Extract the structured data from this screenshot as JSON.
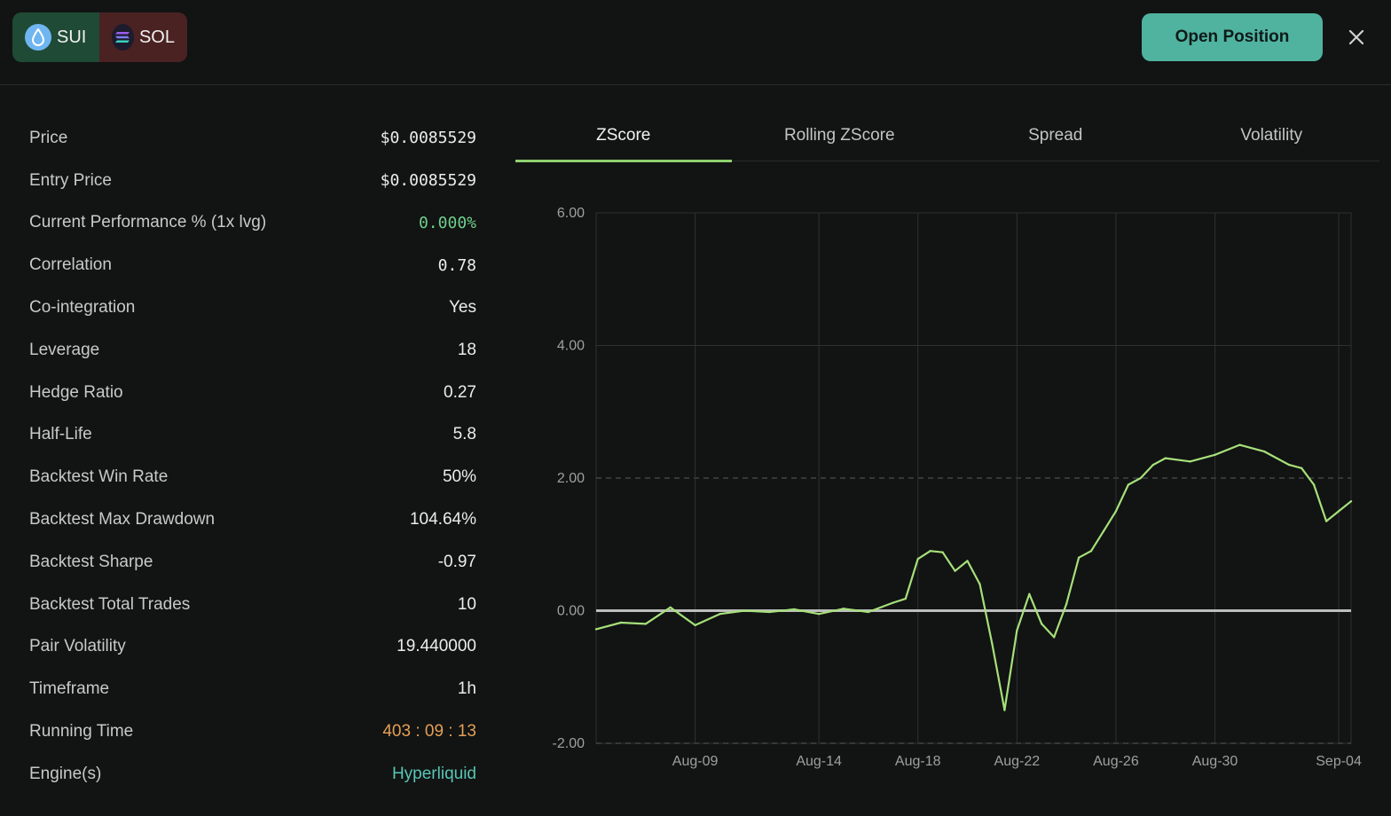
{
  "pair": {
    "token_a": "SUI",
    "token_b": "SOL",
    "token_a_icon": "sui-drop-icon",
    "token_b_icon": "solana-icon"
  },
  "header": {
    "open_position_label": "Open Position",
    "close_icon": "close-icon"
  },
  "stats": [
    {
      "label": "Price",
      "value": "$0.0085529"
    },
    {
      "label": "Entry Price",
      "value": "$0.0085529"
    },
    {
      "label": "Current Performance % (1x lvg)",
      "value": "0.000%"
    },
    {
      "label": "Correlation",
      "value": "0.78"
    },
    {
      "label": "Co-integration",
      "value": "Yes"
    },
    {
      "label": "Leverage",
      "value": "18"
    },
    {
      "label": "Hedge Ratio",
      "value": "0.27"
    },
    {
      "label": "Half-Life",
      "value": "5.8"
    },
    {
      "label": "Backtest Win Rate",
      "value": "50%"
    },
    {
      "label": "Backtest Max Drawdown",
      "value": "104.64%"
    },
    {
      "label": "Backtest Sharpe",
      "value": "-0.97"
    },
    {
      "label": "Backtest Total Trades",
      "value": "10"
    },
    {
      "label": "Pair Volatility",
      "value": "19.440000"
    },
    {
      "label": "Timeframe",
      "value": "1h"
    },
    {
      "label": "Running Time",
      "value": "403 : 09 : 13"
    },
    {
      "label": "Engine(s)",
      "value": "Hyperliquid"
    }
  ],
  "tabs": [
    {
      "label": "ZScore",
      "active": true
    },
    {
      "label": "Rolling ZScore",
      "active": false
    },
    {
      "label": "Spread",
      "active": false
    },
    {
      "label": "Volatility",
      "active": false
    }
  ],
  "colors": {
    "accent": "#8fd16f",
    "button": "#4fb3a0",
    "positive": "#6fd08c",
    "warning": "#e4a055",
    "engine": "#58c6b3",
    "line": "#a6e07a"
  },
  "chart_data": {
    "type": "line",
    "ylim": [
      -2.0,
      6.0
    ],
    "y_ticks": [
      "6.00",
      "4.00",
      "2.00",
      "0.00",
      "-2.00"
    ],
    "x_ticks": [
      "Aug-09",
      "Aug-14",
      "Aug-18",
      "Aug-22",
      "Aug-26",
      "Aug-30",
      "Sep-04"
    ],
    "reference_lines": [
      2.0,
      -2.0,
      0.0
    ],
    "series": [
      {
        "x": [
          "2024-08-05",
          "2024-08-06",
          "2024-08-07",
          "2024-08-08",
          "2024-08-09",
          "2024-08-10",
          "2024-08-11",
          "2024-08-12",
          "2024-08-13",
          "2024-08-14",
          "2024-08-15",
          "2024-08-16",
          "2024-08-17",
          "2024-08-17T12",
          "2024-08-18",
          "2024-08-18T12",
          "2024-08-19",
          "2024-08-19T12",
          "2024-08-20",
          "2024-08-20T12",
          "2024-08-21",
          "2024-08-21T12",
          "2024-08-22",
          "2024-08-22T12",
          "2024-08-23",
          "2024-08-23T12",
          "2024-08-24",
          "2024-08-24T12",
          "2024-08-25",
          "2024-08-25T12",
          "2024-08-26",
          "2024-08-26T12",
          "2024-08-27",
          "2024-08-27T12",
          "2024-08-28",
          "2024-08-29",
          "2024-08-30",
          "2024-08-31",
          "2024-09-01",
          "2024-09-02",
          "2024-09-02T12",
          "2024-09-03",
          "2024-09-03T12",
          "2024-09-04",
          "2024-09-04T12"
        ],
        "values": [
          -0.28,
          -0.18,
          -0.2,
          0.05,
          -0.22,
          -0.05,
          0.0,
          -0.02,
          0.02,
          -0.05,
          0.03,
          -0.02,
          0.12,
          0.18,
          0.78,
          0.9,
          0.88,
          0.6,
          0.75,
          0.4,
          -0.5,
          -1.5,
          -0.3,
          0.25,
          -0.2,
          -0.4,
          0.1,
          0.8,
          0.9,
          1.2,
          1.5,
          1.9,
          2.0,
          2.2,
          2.3,
          2.25,
          2.35,
          2.5,
          2.4,
          2.2,
          2.15,
          1.9,
          1.35,
          1.5,
          1.65
        ]
      }
    ]
  }
}
